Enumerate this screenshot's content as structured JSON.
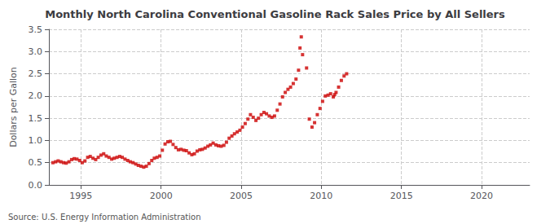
{
  "chart_data": {
    "type": "scatter",
    "title": "Monthly North Carolina Conventional Gasoline Rack Sales Price by All Sellers",
    "ylabel": "Dollars per Gallon",
    "annotations": [
      "Source: U.S. Energy Information Administration"
    ],
    "color": "#cc0000",
    "marker": "square",
    "grid": true,
    "xlim": [
      1993,
      2023
    ],
    "ylim": [
      0.0,
      3.5
    ],
    "xticks": [
      1995,
      2000,
      2005,
      2010,
      2015,
      2020
    ],
    "yticks": [
      {
        "value": 0,
        "label": "0.0"
      },
      0.5,
      {
        "value": 1,
        "label": "1.0"
      },
      1.5,
      {
        "value": 2,
        "label": "2.0"
      },
      2.5,
      {
        "value": 3,
        "label": "3.0"
      },
      3.5
    ],
    "x": [
      1993.25,
      1993.42,
      1993.58,
      1993.75,
      1993.92,
      1994.08,
      1994.25,
      1994.42,
      1994.58,
      1994.75,
      1994.92,
      1995.08,
      1995.25,
      1995.42,
      1995.58,
      1995.75,
      1995.92,
      1996.08,
      1996.25,
      1996.42,
      1996.58,
      1996.75,
      1996.92,
      1997.08,
      1997.25,
      1997.42,
      1997.58,
      1997.75,
      1997.92,
      1998.08,
      1998.25,
      1998.42,
      1998.58,
      1998.75,
      1998.92,
      1999.08,
      1999.25,
      1999.42,
      1999.58,
      1999.75,
      1999.92,
      2000.08,
      2000.25,
      2000.42,
      2000.58,
      2000.75,
      2000.92,
      2001.08,
      2001.25,
      2001.42,
      2001.58,
      2001.75,
      2001.92,
      2002.08,
      2002.25,
      2002.42,
      2002.58,
      2002.75,
      2002.92,
      2003.08,
      2003.25,
      2003.42,
      2003.58,
      2003.75,
      2003.92,
      2004.08,
      2004.25,
      2004.42,
      2004.58,
      2004.75,
      2004.92,
      2005.08,
      2005.25,
      2005.42,
      2005.58,
      2005.75,
      2005.92,
      2006.08,
      2006.25,
      2006.42,
      2006.58,
      2006.75,
      2006.92,
      2007.08,
      2007.25,
      2007.42,
      2007.58,
      2007.75,
      2007.92,
      2008.08,
      2008.25,
      2008.42,
      2008.58,
      2008.67,
      2008.75,
      2008.83,
      2009.08,
      2009.25,
      2009.42,
      2009.58,
      2009.75,
      2009.92,
      2010.08,
      2010.25,
      2010.42,
      2010.58,
      2010.75,
      2010.83,
      2010.92,
      2011.08,
      2011.25,
      2011.42,
      2011.58
    ],
    "values": [
      0.5,
      0.52,
      0.54,
      0.52,
      0.5,
      0.49,
      0.52,
      0.57,
      0.59,
      0.58,
      0.55,
      0.5,
      0.54,
      0.62,
      0.64,
      0.6,
      0.57,
      0.62,
      0.67,
      0.7,
      0.65,
      0.62,
      0.58,
      0.6,
      0.62,
      0.64,
      0.62,
      0.58,
      0.55,
      0.52,
      0.5,
      0.47,
      0.44,
      0.42,
      0.4,
      0.42,
      0.48,
      0.55,
      0.6,
      0.62,
      0.65,
      0.78,
      0.92,
      0.97,
      0.98,
      0.91,
      0.84,
      0.79,
      0.8,
      0.78,
      0.77,
      0.72,
      0.68,
      0.7,
      0.76,
      0.79,
      0.8,
      0.83,
      0.87,
      0.9,
      0.94,
      0.9,
      0.88,
      0.87,
      0.89,
      0.96,
      1.05,
      1.1,
      1.15,
      1.19,
      1.23,
      1.3,
      1.38,
      1.48,
      1.58,
      1.52,
      1.45,
      1.5,
      1.58,
      1.63,
      1.6,
      1.55,
      1.52,
      1.55,
      1.68,
      1.82,
      1.98,
      2.08,
      2.15,
      2.2,
      2.28,
      2.38,
      2.58,
      3.08,
      3.33,
      2.93,
      2.63,
      1.48,
      1.3,
      1.4,
      1.58,
      1.72,
      1.88,
      2.0,
      2.02,
      2.05,
      1.98,
      2.03,
      2.08,
      2.2,
      2.35,
      2.45,
      2.5
    ]
  }
}
